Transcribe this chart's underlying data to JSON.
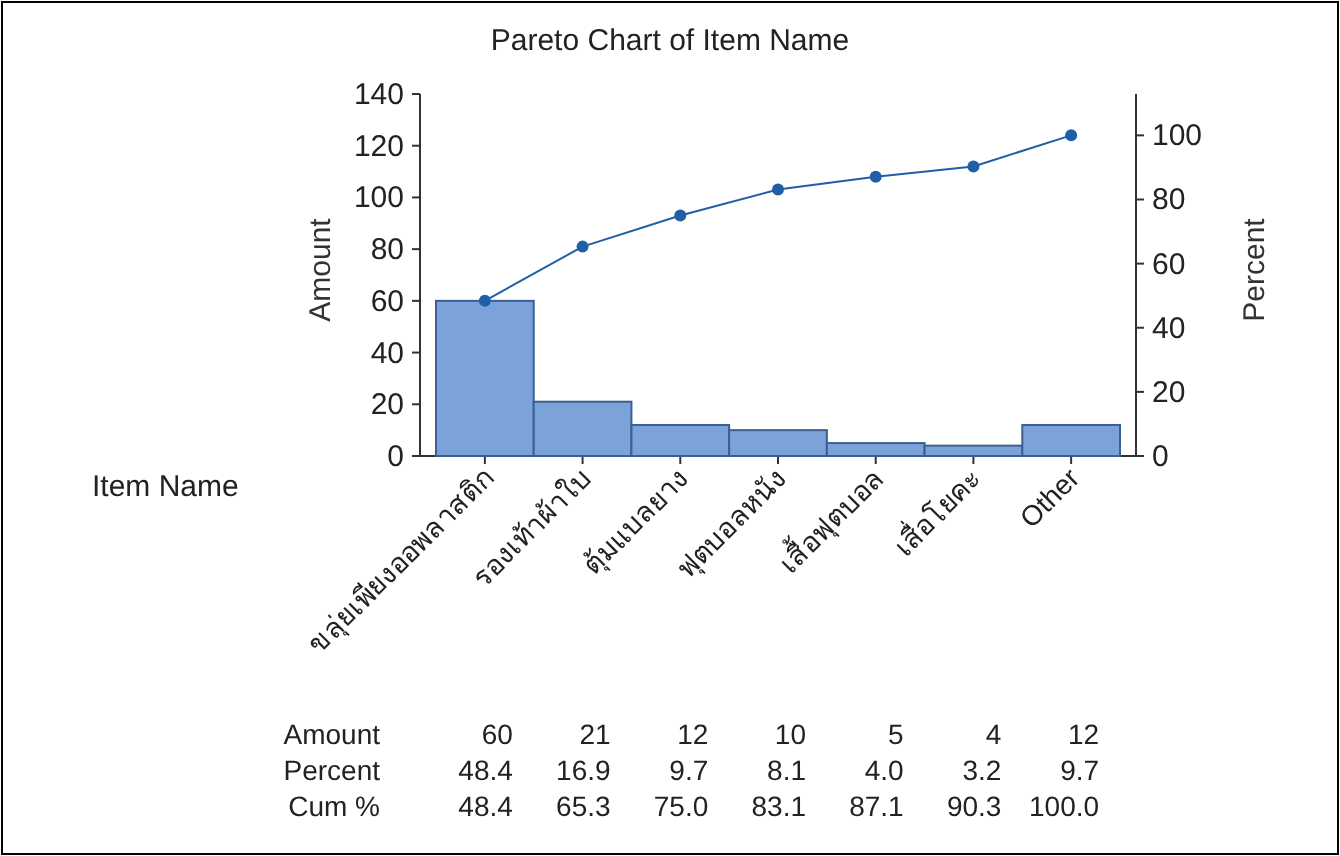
{
  "chart_data": {
    "type": "bar",
    "title": "Pareto Chart of Item Name",
    "xlabel": "Item Name",
    "ylabel": "Amount",
    "y2label": "Percent",
    "categories": [
      "ขลุ่ยเพียงออพลาสติก",
      "รองเท้าผ้าใบ",
      "ตุ้มแบลยาง",
      "ฟุตบอลหนัง",
      "เสื้อฟุตบอล",
      "เสื่อโยคะ",
      "Other"
    ],
    "series": [
      {
        "color": "#7ba3d9",
        "values": [
          60,
          21,
          12,
          10,
          5,
          4,
          12
        ],
        "value_labels": [
          "60",
          "21",
          "12",
          "10",
          "5",
          "4",
          "12"
        ]
      },
      {
        "type": "line",
        "axis": "y2",
        "color": "#1f5fa8",
        "values": [
          48.4,
          65.3,
          75.0,
          83.1,
          87.1,
          90.3,
          100.0
        ],
        "value_labels": [
          "48.4",
          "65.3",
          "75.0",
          "83.1",
          "87.1",
          "90.3",
          "100.0"
        ]
      }
    ],
    "marker": "circle",
    "ylim": [
      0,
      140
    ],
    "yticks": [
      0,
      20,
      40,
      60,
      80,
      100,
      120,
      140
    ],
    "y2lim": [
      0,
      112.9
    ],
    "y2ticks": [
      0,
      20,
      40,
      60,
      80,
      100
    ],
    "annotations": [
      "Amount",
      "Percent",
      "Cum %",
      "48.4",
      "16.9",
      "9.7",
      "8.1",
      "4.0",
      "3.2",
      "9.7"
    ]
  }
}
